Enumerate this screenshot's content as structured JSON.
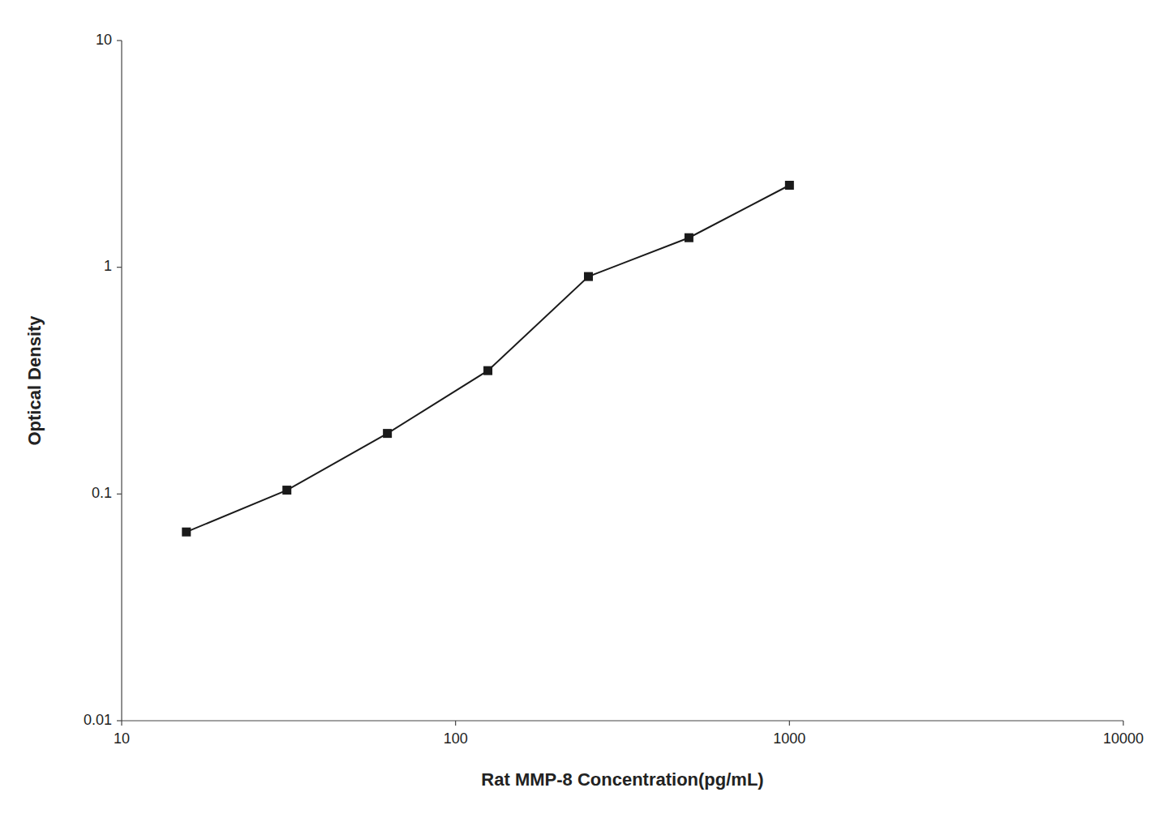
{
  "chart_data": {
    "type": "line",
    "x_label": "Rat MMP-8 Concentration(pg/mL)",
    "y_label": "Optical Density",
    "x": [
      15.625,
      31.25,
      62.5,
      125,
      250,
      500,
      1000
    ],
    "values": [
      0.068,
      0.104,
      0.185,
      0.35,
      0.91,
      1.35,
      2.3
    ],
    "xlim": [
      10,
      10000
    ],
    "ylim": [
      0.01,
      10
    ],
    "xticks": [
      10,
      100,
      1000,
      10000
    ],
    "yticks": [
      0.01,
      0.1,
      1,
      10
    ],
    "log": true,
    "grid": false,
    "color": "#1a1a1a",
    "marker": "square"
  }
}
